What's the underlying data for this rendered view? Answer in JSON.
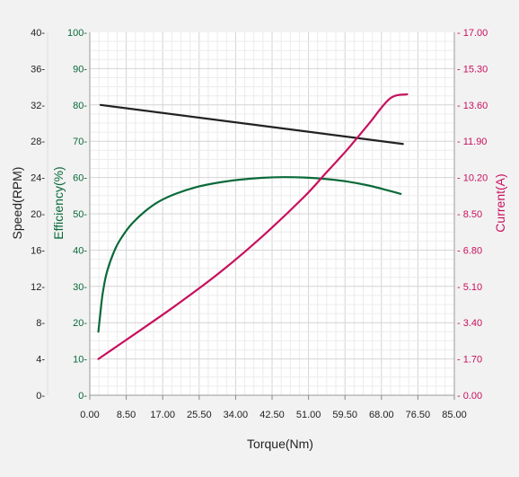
{
  "chart_data": {
    "type": "line",
    "xlabel": "Torque(Nm)",
    "x_ticks": [
      "0.00",
      "8.50",
      "17.00",
      "25.50",
      "34.00",
      "42.50",
      "51.00",
      "59.50",
      "68.00",
      "76.50",
      "85.00"
    ],
    "xlim": [
      0,
      85
    ],
    "grid": true,
    "axes": {
      "speed": {
        "label": "Speed(RPM)",
        "color": "#222222",
        "ylim": [
          0,
          40
        ],
        "ticks": [
          "0-",
          "4-",
          "8-",
          "12-",
          "16-",
          "20-",
          "24-",
          "28-",
          "32-",
          "36-",
          "40-"
        ]
      },
      "efficiency": {
        "label": "Efficiency(%)",
        "color": "#0a6a3a",
        "ylim": [
          0,
          100
        ],
        "ticks": [
          "0-",
          "10-",
          "20-",
          "30-",
          "40-",
          "50-",
          "60-",
          "70-",
          "80-",
          "90-",
          "100-"
        ]
      },
      "current": {
        "label": "Current(A)",
        "color": "#c8105e",
        "ylim": [
          0,
          17
        ],
        "ticks": [
          "- 0.00",
          "- 1.70",
          "- 3.40",
          "- 5.10",
          "- 6.80",
          "- 8.50",
          "- 10.20",
          "- 11.90",
          "- 13.60",
          "- 15.30",
          "- 17.00"
        ]
      }
    },
    "series": [
      {
        "axis": "speed",
        "color": "#222222",
        "x": [
          2.5,
          73
        ],
        "y": [
          32.0,
          27.7
        ]
      },
      {
        "axis": "efficiency",
        "color": "#0a6a3a",
        "x": [
          2,
          2.5,
          3,
          4,
          6,
          8,
          10,
          13,
          16,
          20,
          25,
          30,
          35,
          40,
          45,
          50,
          55,
          60,
          65,
          70,
          72.5
        ],
        "y": [
          17.5,
          23,
          28,
          34,
          40.5,
          44.5,
          47.5,
          50.8,
          53.3,
          55.5,
          57.4,
          58.6,
          59.4,
          59.9,
          60.1,
          60.0,
          59.6,
          58.9,
          57.8,
          56.3,
          55.5
        ]
      },
      {
        "axis": "current",
        "color": "#c8105e",
        "x": [
          2,
          10,
          20,
          30,
          40,
          50,
          55,
          60,
          65,
          70,
          74
        ],
        "y": [
          1.7,
          2.8,
          4.2,
          5.7,
          7.4,
          9.3,
          10.4,
          11.5,
          12.7,
          13.9,
          14.1
        ]
      }
    ]
  }
}
